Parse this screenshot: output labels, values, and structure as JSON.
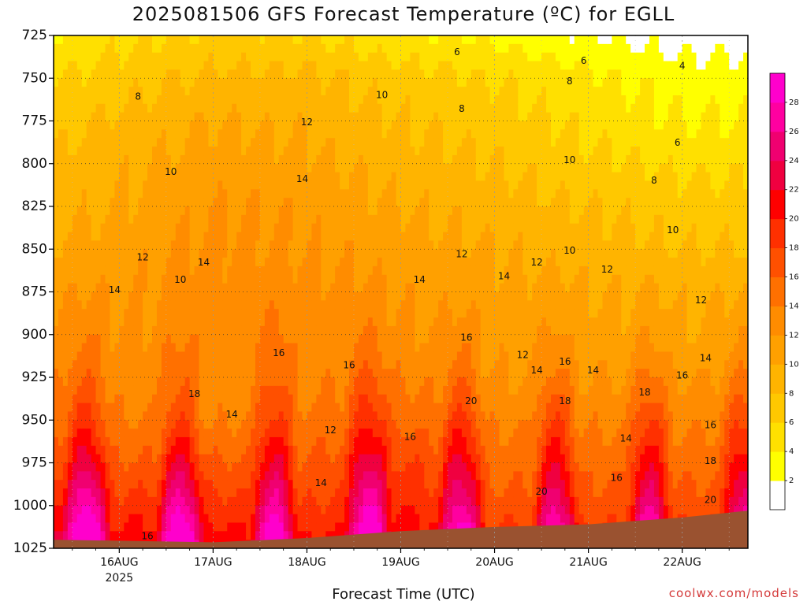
{
  "chart_data": {
    "type": "heatmap",
    "title": "2025081506 GFS Forecast Temperature (ºC) for EGLL",
    "xlabel": "Forecast Time (UTC)",
    "ylabel": "",
    "credit": "coolwx.com/models",
    "y_axis": {
      "levels": [
        725,
        750,
        775,
        800,
        825,
        850,
        875,
        900,
        925,
        950,
        975,
        1000,
        1025
      ],
      "labels": [
        "725",
        "750",
        "775",
        "800",
        "825",
        "850",
        "875",
        "900",
        "925",
        "950",
        "975",
        "1000",
        "1025"
      ],
      "range": [
        1025,
        725
      ],
      "inverted": true
    },
    "x_axis": {
      "range": [
        0.3,
        7.7
      ],
      "ticks": [
        1,
        2,
        3,
        4,
        5,
        6,
        7
      ],
      "tick_labels": [
        "16AUG",
        "17AUG",
        "18AUG",
        "19AUG",
        "20AUG",
        "21AUG",
        "22AUG"
      ],
      "year_label": "2025"
    },
    "grid": true,
    "colorbar": {
      "levels": [
        2,
        4,
        6,
        8,
        10,
        12,
        14,
        16,
        18,
        20,
        22,
        24,
        26,
        28
      ],
      "labels": [
        "2",
        "4",
        "6",
        "8",
        "10",
        "12",
        "14",
        "16",
        "18",
        "20",
        "22",
        "24",
        "26",
        "28"
      ],
      "colors": [
        "#ffffff",
        "#ffff00",
        "#ffe000",
        "#ffc800",
        "#ffb400",
        "#ffa000",
        "#ff8c00",
        "#ff7000",
        "#ff5000",
        "#ff3000",
        "#ff0000",
        "#f00040",
        "#f00070",
        "#ff00a0",
        "#ff00cc"
      ],
      "placement": "right"
    },
    "temperature_cross_section": [
      {
        "level": 725,
        "values_by_day": [
          5.5,
          7.5,
          8.5,
          8,
          6.5,
          5.5,
          4,
          3
        ]
      },
      {
        "level": 750,
        "values_by_day": [
          7.5,
          9,
          10.5,
          10.5,
          9,
          8,
          6.5,
          5
        ]
      },
      {
        "level": 775,
        "values_by_day": [
          8.5,
          10.5,
          12,
          11.5,
          10,
          9,
          7.5,
          6
        ]
      },
      {
        "level": 800,
        "values_by_day": [
          10,
          11.5,
          13,
          12.5,
          11,
          10,
          8.5,
          7.5
        ]
      },
      {
        "level": 825,
        "values_by_day": [
          11,
          12,
          14,
          13.5,
          12,
          11,
          10,
          9
        ]
      },
      {
        "level": 850,
        "values_by_day": [
          12,
          13,
          14.5,
          14,
          13,
          12,
          11,
          10
        ]
      },
      {
        "level": 875,
        "values_by_day": [
          13.5,
          14,
          15,
          15,
          14,
          13,
          12.5,
          12
        ]
      },
      {
        "level": 900,
        "values_by_day": [
          15,
          15,
          15.5,
          16,
          15,
          14,
          13.5,
          13
        ]
      },
      {
        "level": 925,
        "values_by_day": [
          17,
          16,
          16,
          16.5,
          17,
          15,
          15,
          15
        ]
      },
      {
        "level": 950,
        "values_by_day": [
          19,
          17.5,
          17,
          18,
          19,
          17,
          17,
          17
        ]
      },
      {
        "level": 975,
        "values_by_day": [
          22,
          20,
          20,
          20,
          22,
          19,
          19,
          19
        ]
      },
      {
        "level": 1000,
        "values_by_day": [
          25,
          23,
          23,
          22,
          24,
          21,
          21,
          21
        ]
      }
    ],
    "contour_labels": [
      {
        "text": "6",
        "day": 4.6,
        "level": 735
      },
      {
        "text": "6",
        "day": 5.95,
        "level": 740
      },
      {
        "text": "4",
        "day": 7.0,
        "level": 743
      },
      {
        "text": "8",
        "day": 1.2,
        "level": 761
      },
      {
        "text": "8",
        "day": 5.8,
        "level": 752
      },
      {
        "text": "8",
        "day": 4.65,
        "level": 768
      },
      {
        "text": "10",
        "day": 3.8,
        "level": 760
      },
      {
        "text": "12",
        "day": 3.0,
        "level": 776
      },
      {
        "text": "6",
        "day": 6.95,
        "level": 788
      },
      {
        "text": "10",
        "day": 5.8,
        "level": 798
      },
      {
        "text": "10",
        "day": 1.55,
        "level": 805
      },
      {
        "text": "8",
        "day": 6.7,
        "level": 810
      },
      {
        "text": "14",
        "day": 2.95,
        "level": 809
      },
      {
        "text": "10",
        "day": 6.9,
        "level": 839
      },
      {
        "text": "12",
        "day": 1.25,
        "level": 855
      },
      {
        "text": "14",
        "day": 1.9,
        "level": 858
      },
      {
        "text": "10",
        "day": 5.8,
        "level": 851
      },
      {
        "text": "12",
        "day": 4.65,
        "level": 853
      },
      {
        "text": "12",
        "day": 5.45,
        "level": 858
      },
      {
        "text": "12",
        "day": 6.2,
        "level": 862
      },
      {
        "text": "14",
        "day": 4.2,
        "level": 868
      },
      {
        "text": "14",
        "day": 5.1,
        "level": 866
      },
      {
        "text": "10",
        "day": 1.65,
        "level": 868
      },
      {
        "text": "14",
        "day": 0.95,
        "level": 874
      },
      {
        "text": "12",
        "day": 7.2,
        "level": 880
      },
      {
        "text": "16",
        "day": 4.7,
        "level": 902
      },
      {
        "text": "12",
        "day": 5.3,
        "level": 912
      },
      {
        "text": "14",
        "day": 7.25,
        "level": 914
      },
      {
        "text": "16",
        "day": 3.45,
        "level": 918
      },
      {
        "text": "16",
        "day": 2.7,
        "level": 911
      },
      {
        "text": "16",
        "day": 5.75,
        "level": 916
      },
      {
        "text": "14",
        "day": 5.45,
        "level": 921
      },
      {
        "text": "14",
        "day": 6.05,
        "level": 921
      },
      {
        "text": "16",
        "day": 7.0,
        "level": 924
      },
      {
        "text": "18",
        "day": 1.8,
        "level": 935
      },
      {
        "text": "18",
        "day": 6.6,
        "level": 934
      },
      {
        "text": "20",
        "day": 4.75,
        "level": 939
      },
      {
        "text": "18",
        "day": 5.75,
        "level": 939
      },
      {
        "text": "14",
        "day": 2.2,
        "level": 947
      },
      {
        "text": "16",
        "day": 7.3,
        "level": 953
      },
      {
        "text": "12",
        "day": 3.25,
        "level": 956
      },
      {
        "text": "16",
        "day": 4.1,
        "level": 960
      },
      {
        "text": "14",
        "day": 6.4,
        "level": 961
      },
      {
        "text": "18",
        "day": 7.3,
        "level": 974
      },
      {
        "text": "16",
        "day": 6.3,
        "level": 984
      },
      {
        "text": "14",
        "day": 3.15,
        "level": 987
      },
      {
        "text": "20",
        "day": 5.5,
        "level": 992
      },
      {
        "text": "20",
        "day": 7.3,
        "level": 997
      },
      {
        "text": "16",
        "day": 1.3,
        "level": 1018
      }
    ]
  }
}
